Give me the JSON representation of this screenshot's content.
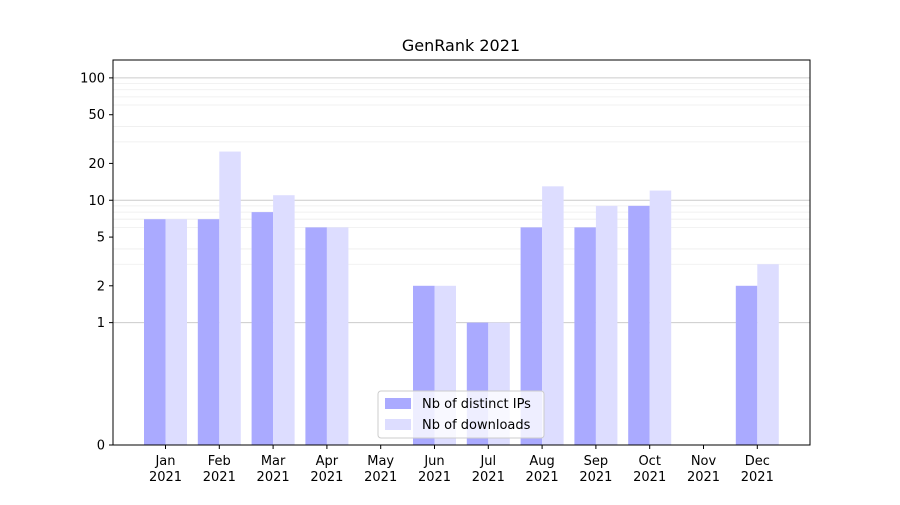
{
  "colors": {
    "distinct_ips": "#aaaaff",
    "downloads": "#ddddff",
    "major_grid": "#cccccc",
    "minor_grid": "#eeeeee",
    "axis": "#000000"
  },
  "chart_data": {
    "type": "bar",
    "title": "GenRank 2021",
    "xlabel": "",
    "ylabel": "",
    "y_scale": "symlog",
    "ylim": [
      0,
      140
    ],
    "y_ticks": [
      0,
      1,
      2,
      5,
      10,
      20,
      50,
      100
    ],
    "y_tick_labels": [
      "0",
      "1",
      "2",
      "5",
      "10",
      "20",
      "50",
      "100"
    ],
    "grid": "y",
    "legend_position": "bottom-center",
    "categories": [
      [
        "Jan",
        "2021"
      ],
      [
        "Feb",
        "2021"
      ],
      [
        "Mar",
        "2021"
      ],
      [
        "Apr",
        "2021"
      ],
      [
        "May",
        "2021"
      ],
      [
        "Jun",
        "2021"
      ],
      [
        "Jul",
        "2021"
      ],
      [
        "Aug",
        "2021"
      ],
      [
        "Sep",
        "2021"
      ],
      [
        "Oct",
        "2021"
      ],
      [
        "Nov",
        "2021"
      ],
      [
        "Dec",
        "2021"
      ]
    ],
    "series": [
      {
        "name": "Nb of distinct IPs",
        "color_key": "distinct_ips",
        "values": [
          7,
          7,
          8,
          6,
          0,
          2,
          1,
          6,
          6,
          9,
          0,
          2
        ]
      },
      {
        "name": "Nb of downloads",
        "color_key": "downloads",
        "values": [
          7,
          25,
          11,
          6,
          0,
          2,
          1,
          13,
          9,
          12,
          0,
          3
        ]
      }
    ]
  }
}
